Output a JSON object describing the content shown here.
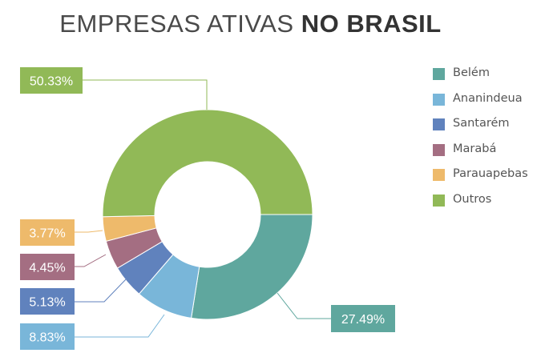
{
  "header": {
    "title_light": "EMPRESAS ATIVAS",
    "title_bold": "NO BRASIL"
  },
  "chart_data": {
    "type": "pie",
    "variant": "donut",
    "title": "EMPRESAS ATIVAS NO BRASIL",
    "categories": [
      "Belém",
      "Ananindeua",
      "Santarém",
      "Marabá",
      "Parauapebas",
      "Outros"
    ],
    "values": [
      27.49,
      8.83,
      5.13,
      4.45,
      3.77,
      50.33
    ],
    "labels": [
      "27.49%",
      "8.83%",
      "5.13%",
      "4.45%",
      "3.77%",
      "50.33%"
    ],
    "colors": [
      "#5fa79e",
      "#79b6d9",
      "#6082bd",
      "#a46e82",
      "#eeba6b",
      "#91b957"
    ],
    "legend_position": "right",
    "unit": "%"
  }
}
